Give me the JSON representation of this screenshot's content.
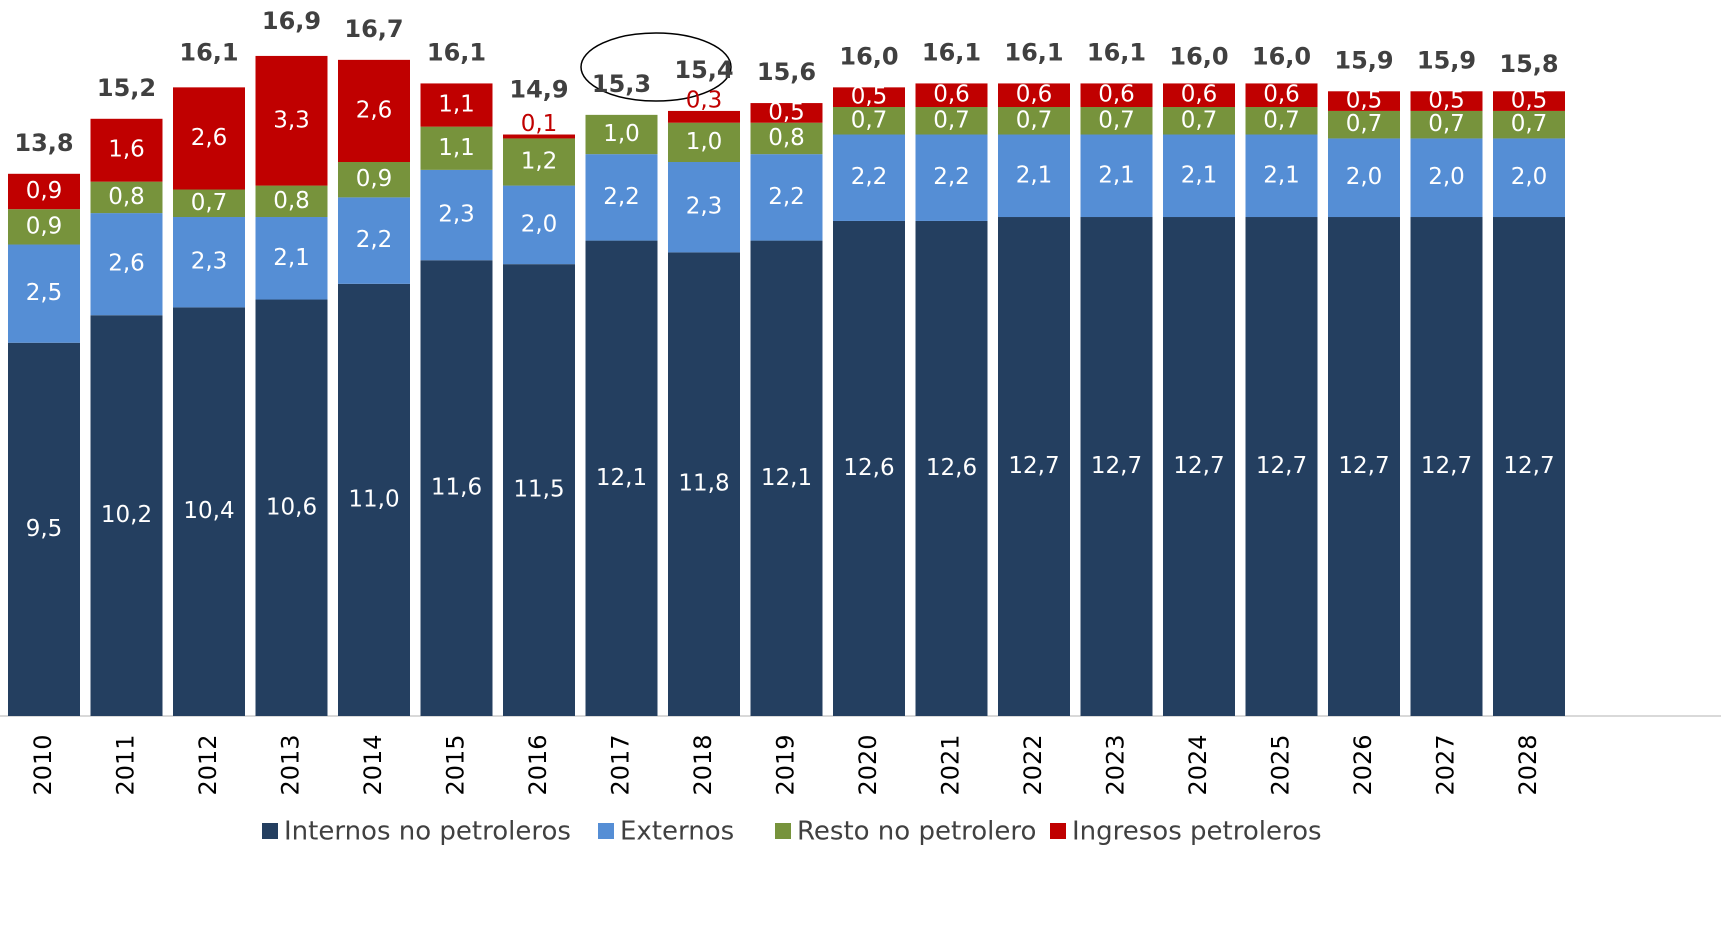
{
  "chart_data": {
    "type": "stacked_bar",
    "categories": [
      "2010",
      "2011",
      "2012",
      "2013",
      "2014",
      "2015",
      "2016",
      "2017",
      "2018",
      "2019",
      "2020",
      "2021",
      "2022",
      "2023",
      "2024",
      "2025",
      "2026",
      "2027",
      "2028"
    ],
    "series": [
      {
        "name": "Internos no petroleros",
        "color": "#243f60",
        "values": [
          9.5,
          10.2,
          10.4,
          10.6,
          11.0,
          11.6,
          11.5,
          12.1,
          11.8,
          12.1,
          12.6,
          12.6,
          12.7,
          12.7,
          12.7,
          12.7,
          12.7,
          12.7,
          12.7
        ],
        "value_labels": [
          "9,5",
          "10,2",
          "10,4",
          "10,6",
          "11,0",
          "11,6",
          "11,5",
          "12,1",
          "11,8",
          "12,1",
          "12,6",
          "12,6",
          "12,7",
          "12,7",
          "12,7",
          "12,7",
          "12,7",
          "12,7",
          "12,7"
        ]
      },
      {
        "name": "Externos",
        "color": "#558ed5",
        "values": [
          2.5,
          2.6,
          2.3,
          2.1,
          2.2,
          2.3,
          2.0,
          2.2,
          2.3,
          2.2,
          2.2,
          2.2,
          2.1,
          2.1,
          2.1,
          2.1,
          2.0,
          2.0,
          2.0
        ],
        "value_labels": [
          "2,5",
          "2,6",
          "2,3",
          "2,1",
          "2,2",
          "2,3",
          "2,0",
          "2,2",
          "2,3",
          "2,2",
          "2,2",
          "2,2",
          "2,1",
          "2,1",
          "2,1",
          "2,1",
          "2,0",
          "2,0",
          "2,0"
        ]
      },
      {
        "name": "Resto no petrolero",
        "color": "#77933c",
        "values": [
          0.9,
          0.8,
          0.7,
          0.8,
          0.9,
          1.1,
          1.2,
          1.0,
          1.0,
          0.8,
          0.7,
          0.7,
          0.7,
          0.7,
          0.7,
          0.7,
          0.7,
          0.7,
          0.7
        ],
        "value_labels": [
          "0,9",
          "0,8",
          "0,7",
          "0,8",
          "0,9",
          "1,1",
          "1,2",
          "1,0",
          "1,0",
          "0,8",
          "0,7",
          "0,7",
          "0,7",
          "0,7",
          "0,7",
          "0,7",
          "0,7",
          "0,7",
          "0,7"
        ]
      },
      {
        "name": "Ingresos petroleros",
        "color": "#c00000",
        "values": [
          0.9,
          1.6,
          2.6,
          3.3,
          2.6,
          1.1,
          0.1,
          null,
          0.3,
          0.5,
          0.5,
          0.6,
          0.6,
          0.6,
          0.6,
          0.6,
          0.5,
          0.5,
          0.5
        ],
        "value_labels": [
          "0,9",
          "1,6",
          "2,6",
          "3,3",
          "2,6",
          "1,1",
          "0,1",
          null,
          "0,3",
          "0,5",
          "0,5",
          "0,6",
          "0,6",
          "0,6",
          "0,6",
          "0,6",
          "0,5",
          "0,5",
          "0,5"
        ]
      }
    ],
    "totals": {
      "values": [
        13.8,
        15.2,
        16.1,
        16.9,
        16.7,
        16.1,
        14.9,
        15.3,
        15.4,
        15.6,
        16.0,
        16.1,
        16.1,
        16.1,
        16.0,
        16.0,
        15.9,
        15.9,
        15.8
      ],
      "value_labels": [
        "13,8",
        "15,2",
        "16,1",
        "16,9",
        "16,7",
        "16,1",
        "14,9",
        "15,3",
        "15,4",
        "15,6",
        "16,0",
        "16,1",
        "16,1",
        "16,1",
        "16,0",
        "16,0",
        "15,9",
        "15,9",
        "15,8"
      ]
    },
    "legend": "bottom"
  }
}
